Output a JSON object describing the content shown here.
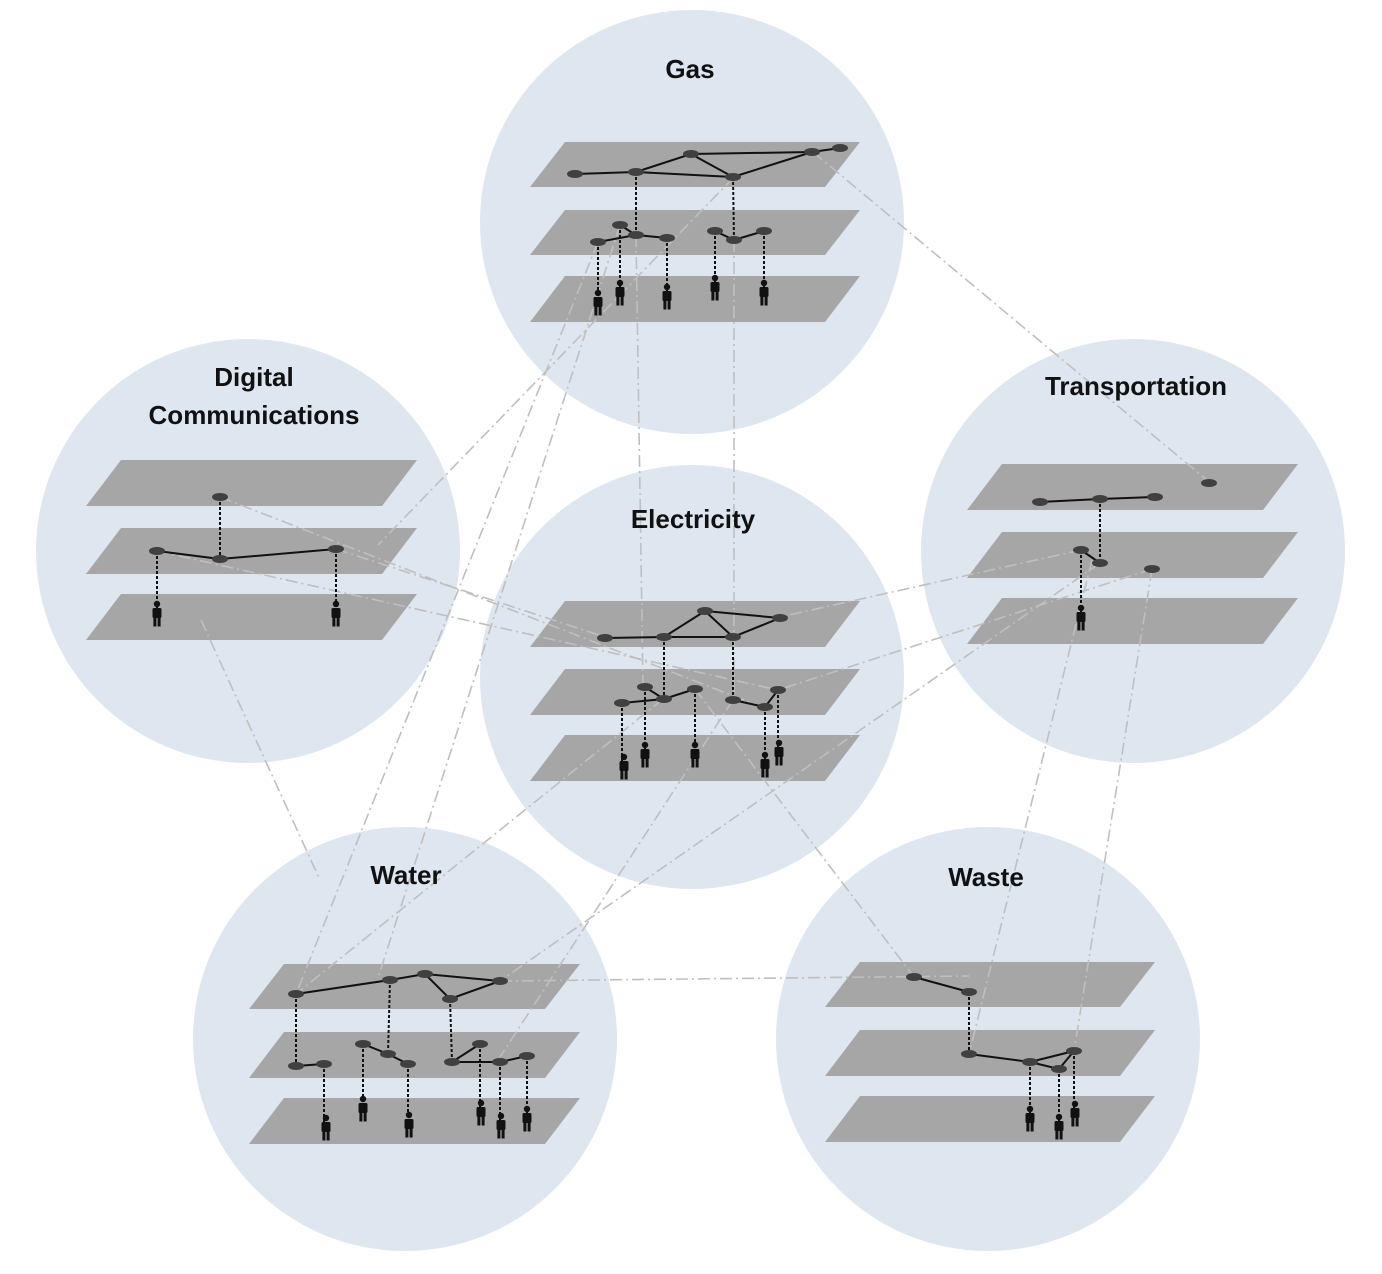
{
  "colors": {
    "background": "#ffffff",
    "circle_fill": "#dee6f0",
    "plane_fill": "#a6a6a6",
    "node_fill": "#404040",
    "edge_color": "#111111",
    "interlink_color": "#bfbfbf"
  },
  "systems": {
    "gas": {
      "label": "Gas"
    },
    "digital": {
      "label_line1": "Digital",
      "label_line2": "Communications"
    },
    "transportation": {
      "label": "Transportation"
    },
    "electricity": {
      "label": "Electricity"
    },
    "water": {
      "label": "Water"
    },
    "waste": {
      "label": "Waste"
    }
  },
  "icons": {
    "consumer": "person-icon",
    "node": "node-dot"
  }
}
